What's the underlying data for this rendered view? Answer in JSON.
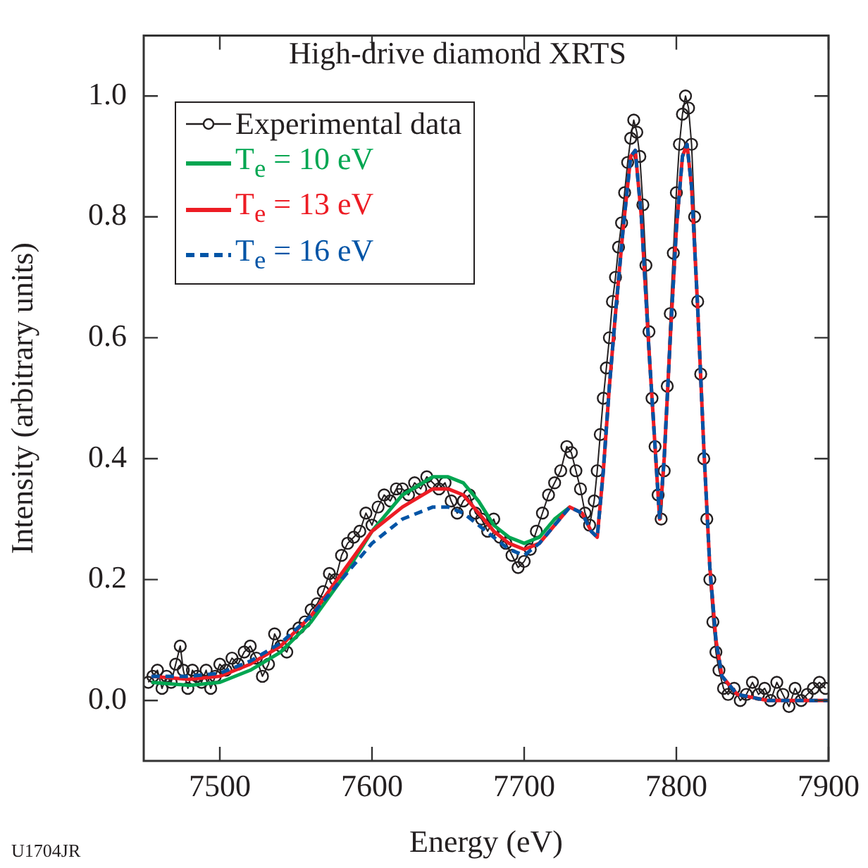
{
  "chart_data": {
    "type": "line",
    "title": "High-drive diamond XRTS",
    "xlabel": "Energy (eV)",
    "ylabel": "Intensity (arbitrary units)",
    "xlim": [
      7450,
      7900
    ],
    "xticks": [
      7500,
      7600,
      7700,
      7800,
      7900
    ],
    "ylim": [
      -0.1,
      1.1
    ],
    "yticks": [
      {
        "value": 0,
        "label": "0.0"
      },
      {
        "value": 0.2,
        "label": "0.2"
      },
      {
        "value": 0.4,
        "label": "0.4"
      },
      {
        "value": 0.6,
        "label": "0.6"
      },
      {
        "value": 0.8,
        "label": "0.8"
      },
      {
        "value": 1,
        "label": "1.0"
      }
    ],
    "legend": "top left",
    "annotations": [
      "U1704JR"
    ],
    "series": [
      {
        "name": "Experimental data",
        "color": "#231f20",
        "marker": "circle",
        "line_style": "solid",
        "x": [
          7453,
          7456,
          7459,
          7462,
          7465,
          7468,
          7471,
          7474,
          7476,
          7479,
          7482,
          7485,
          7488,
          7491,
          7494,
          7497,
          7500,
          7504,
          7508,
          7512,
          7516,
          7520,
          7524,
          7528,
          7532,
          7536,
          7540,
          7544,
          7548,
          7552,
          7556,
          7560,
          7564,
          7568,
          7572,
          7576,
          7580,
          7584,
          7588,
          7592,
          7596,
          7600,
          7604,
          7608,
          7612,
          7616,
          7620,
          7624,
          7628,
          7632,
          7636,
          7640,
          7644,
          7648,
          7652,
          7656,
          7660,
          7664,
          7668,
          7672,
          7676,
          7680,
          7684,
          7688,
          7692,
          7696,
          7700,
          7704,
          7708,
          7712,
          7716,
          7720,
          7724,
          7728,
          7731,
          7734,
          7737,
          7740,
          7743,
          7746,
          7748,
          7750,
          7752,
          7754,
          7756,
          7758,
          7760,
          7762,
          7764,
          7766,
          7768,
          7770,
          7772,
          7774,
          7776,
          7778,
          7780,
          7782,
          7784,
          7786,
          7788,
          7790,
          7792,
          7794,
          7796,
          7798,
          7800,
          7802,
          7804,
          7806,
          7808,
          7810,
          7812,
          7814,
          7816,
          7818,
          7820,
          7822,
          7824,
          7826,
          7828,
          7831,
          7834,
          7838,
          7842,
          7846,
          7850,
          7854,
          7858,
          7862,
          7866,
          7870,
          7874,
          7878,
          7882,
          7886,
          7890,
          7894,
          7898
        ],
        "values": [
          0.03,
          0.04,
          0.05,
          0.02,
          0.04,
          0.03,
          0.06,
          0.09,
          0.05,
          0.02,
          0.05,
          0.04,
          0.03,
          0.05,
          0.02,
          0.04,
          0.06,
          0.05,
          0.07,
          0.06,
          0.08,
          0.09,
          0.07,
          0.04,
          0.06,
          0.11,
          0.09,
          0.08,
          0.11,
          0.12,
          0.13,
          0.15,
          0.16,
          0.18,
          0.21,
          0.2,
          0.24,
          0.26,
          0.27,
          0.28,
          0.31,
          0.29,
          0.32,
          0.34,
          0.33,
          0.35,
          0.35,
          0.34,
          0.36,
          0.35,
          0.37,
          0.36,
          0.35,
          0.36,
          0.33,
          0.31,
          0.33,
          0.34,
          0.31,
          0.3,
          0.28,
          0.3,
          0.27,
          0.26,
          0.24,
          0.22,
          0.23,
          0.25,
          0.28,
          0.31,
          0.34,
          0.36,
          0.38,
          0.42,
          0.41,
          0.38,
          0.35,
          0.31,
          0.29,
          0.33,
          0.38,
          0.44,
          0.5,
          0.55,
          0.6,
          0.66,
          0.7,
          0.75,
          0.79,
          0.84,
          0.89,
          0.93,
          0.96,
          0.94,
          0.9,
          0.82,
          0.72,
          0.61,
          0.5,
          0.42,
          0.34,
          0.3,
          0.38,
          0.52,
          0.64,
          0.74,
          0.84,
          0.92,
          0.97,
          1.0,
          0.98,
          0.92,
          0.8,
          0.66,
          0.54,
          0.4,
          0.3,
          0.2,
          0.13,
          0.08,
          0.05,
          0.02,
          0.01,
          0.02,
          0,
          0.01,
          0.03,
          0.01,
          0.02,
          0,
          0.03,
          0.01,
          -0.01,
          0.02,
          0,
          0.01,
          0.02,
          0.03,
          0.02
        ]
      },
      {
        "name": "T$_{e}$ = 10 eV",
        "color": "#00a651",
        "marker": "none",
        "line_style": "solid",
        "x": [
          7455,
          7480,
          7500,
          7520,
          7540,
          7560,
          7580,
          7600,
          7620,
          7640,
          7650,
          7660,
          7670,
          7680,
          7690,
          7700,
          7710,
          7720,
          7730
        ],
        "values": [
          0.03,
          0.025,
          0.03,
          0.05,
          0.08,
          0.13,
          0.2,
          0.28,
          0.34,
          0.37,
          0.37,
          0.36,
          0.33,
          0.29,
          0.27,
          0.26,
          0.27,
          0.3,
          0.32
        ]
      },
      {
        "name": "T$_{e}$ = 13 eV",
        "color": "#ed1c24",
        "marker": "none",
        "line_style": "solid",
        "x": [
          7455,
          7480,
          7500,
          7520,
          7540,
          7560,
          7580,
          7600,
          7620,
          7640,
          7650,
          7660,
          7670,
          7680,
          7690,
          7700,
          7710,
          7720,
          7730,
          7738,
          7744,
          7748,
          7752,
          7756,
          7760,
          7765,
          7770,
          7773,
          7777,
          7782,
          7786,
          7789,
          7792,
          7796,
          7800,
          7804,
          7807,
          7810,
          7814,
          7818,
          7822,
          7826,
          7830,
          7840,
          7860,
          7880,
          7900
        ],
        "values": [
          0.04,
          0.035,
          0.04,
          0.06,
          0.09,
          0.14,
          0.21,
          0.28,
          0.32,
          0.35,
          0.35,
          0.34,
          0.31,
          0.28,
          0.26,
          0.25,
          0.26,
          0.29,
          0.32,
          0.31,
          0.28,
          0.27,
          0.38,
          0.52,
          0.64,
          0.78,
          0.9,
          0.91,
          0.8,
          0.58,
          0.42,
          0.3,
          0.4,
          0.6,
          0.78,
          0.9,
          0.92,
          0.85,
          0.65,
          0.42,
          0.22,
          0.1,
          0.04,
          0.01,
          0,
          0,
          0
        ]
      },
      {
        "name": "T$_{e}$ = 16 eV",
        "color": "#0054a6",
        "marker": "none",
        "line_style": "dashed",
        "x": [
          7455,
          7480,
          7500,
          7520,
          7540,
          7560,
          7580,
          7600,
          7620,
          7640,
          7650,
          7660,
          7670,
          7680,
          7690,
          7700,
          7710,
          7720,
          7730,
          7738,
          7744,
          7748,
          7752,
          7756,
          7760,
          7765,
          7770,
          7773,
          7777,
          7782,
          7786,
          7789,
          7792,
          7796,
          7800,
          7804,
          7807,
          7810,
          7814,
          7818,
          7822,
          7826,
          7830,
          7840,
          7860,
          7880,
          7900
        ],
        "values": [
          0.04,
          0.04,
          0.045,
          0.065,
          0.095,
          0.14,
          0.2,
          0.26,
          0.3,
          0.32,
          0.32,
          0.31,
          0.29,
          0.27,
          0.25,
          0.24,
          0.26,
          0.29,
          0.32,
          0.31,
          0.28,
          0.27,
          0.38,
          0.52,
          0.64,
          0.78,
          0.9,
          0.91,
          0.8,
          0.58,
          0.42,
          0.3,
          0.4,
          0.6,
          0.78,
          0.9,
          0.92,
          0.85,
          0.65,
          0.42,
          0.22,
          0.1,
          0.04,
          0.01,
          0,
          0,
          0
        ]
      }
    ]
  }
}
